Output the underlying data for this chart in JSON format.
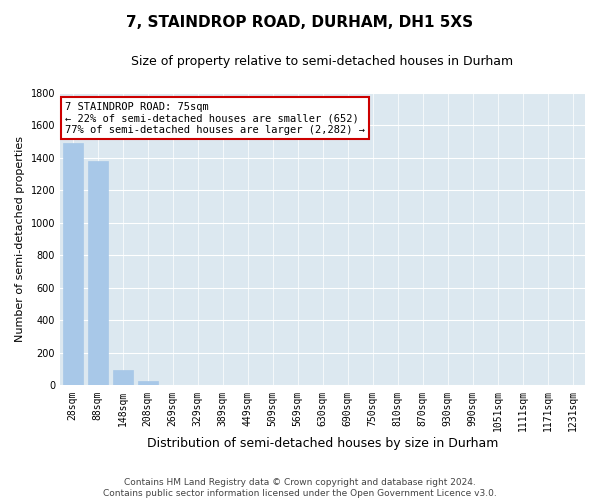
{
  "title": "7, STAINDROP ROAD, DURHAM, DH1 5XS",
  "subtitle": "Size of property relative to semi-detached houses in Durham",
  "xlabel": "Distribution of semi-detached houses by size in Durham",
  "ylabel": "Number of semi-detached properties",
  "footer_line1": "Contains HM Land Registry data © Crown copyright and database right 2024.",
  "footer_line2": "Contains public sector information licensed under the Open Government Licence v3.0.",
  "categories": [
    "28sqm",
    "88sqm",
    "148sqm",
    "208sqm",
    "269sqm",
    "329sqm",
    "389sqm",
    "449sqm",
    "509sqm",
    "569sqm",
    "630sqm",
    "690sqm",
    "750sqm",
    "810sqm",
    "870sqm",
    "930sqm",
    "990sqm",
    "1051sqm",
    "1111sqm",
    "1171sqm",
    "1231sqm"
  ],
  "values": [
    1490,
    1380,
    95,
    28,
    0,
    0,
    0,
    0,
    0,
    0,
    0,
    0,
    0,
    0,
    0,
    0,
    0,
    0,
    0,
    0,
    0
  ],
  "bar_color": "#a8c8e8",
  "bar_edge_color": "#a8c8e8",
  "ylim": [
    0,
    1800
  ],
  "yticks": [
    0,
    200,
    400,
    600,
    800,
    1000,
    1200,
    1400,
    1600,
    1800
  ],
  "annotation_title": "7 STAINDROP ROAD: 75sqm",
  "annotation_line1": "← 22% of semi-detached houses are smaller (652)",
  "annotation_line2": "77% of semi-detached houses are larger (2,282) →",
  "ann_face": "#ffffff",
  "ann_edge": "#cc0000",
  "fig_bg": "#ffffff",
  "plot_bg": "#dce8f0",
  "grid_color": "#ffffff",
  "title_fs": 11,
  "subtitle_fs": 9,
  "xlabel_fs": 9,
  "ylabel_fs": 8,
  "tick_fs": 7,
  "ann_fs": 7.5,
  "footer_fs": 6.5
}
